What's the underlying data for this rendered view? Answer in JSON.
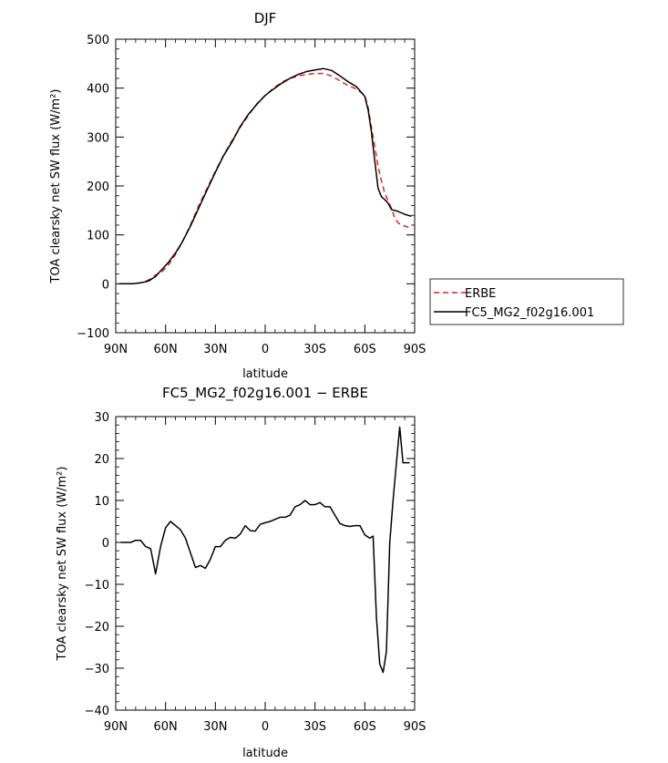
{
  "chart_data": [
    {
      "type": "line",
      "title": "DJF",
      "xlabel": "latitude",
      "ylabel": "TOA clearsky net SW flux (W/m²)",
      "xlim": [
        -90,
        90
      ],
      "ylim": [
        -100,
        500
      ],
      "x_ticks": [
        -90,
        -60,
        -30,
        0,
        30,
        60,
        90
      ],
      "x_tick_labels": [
        "90N",
        "60N",
        "30N",
        "0",
        "30S",
        "60S",
        "90S"
      ],
      "y_ticks": [
        -100,
        0,
        100,
        200,
        300,
        400,
        500
      ],
      "y_tick_labels": [
        "−100",
        "0",
        "100",
        "200",
        "300",
        "400",
        "500"
      ],
      "grid": false,
      "legend": "right",
      "series": [
        {
          "name": "ERBE",
          "color": "#e8211e",
          "dash": "dashed",
          "x": [
            -88,
            -85,
            -80,
            -75,
            -70,
            -66,
            -62,
            -58,
            -54,
            -50,
            -45,
            -40,
            -35,
            -30,
            -25,
            -20,
            -15,
            -10,
            -5,
            0,
            5,
            10,
            15,
            20,
            25,
            30,
            35,
            40,
            45,
            50,
            55,
            60,
            62,
            64,
            66,
            68,
            70,
            72,
            74,
            76,
            78,
            80,
            82,
            84,
            86,
            88
          ],
          "y": [
            0,
            0,
            0,
            2,
            8,
            18,
            25,
            40,
            60,
            85,
            120,
            160,
            195,
            230,
            263,
            293,
            320,
            345,
            368,
            385,
            400,
            412,
            420,
            425,
            428,
            430,
            430,
            425,
            415,
            405,
            398,
            385,
            360,
            320,
            280,
            240,
            210,
            185,
            170,
            155,
            135,
            125,
            120,
            118,
            116,
            115
          ]
        },
        {
          "name": "FC5_MG2_f02g16.001",
          "color": "#000000",
          "dash": "solid",
          "x": [
            -88,
            -85,
            -80,
            -75,
            -70,
            -66,
            -62,
            -58,
            -54,
            -50,
            -45,
            -40,
            -35,
            -30,
            -25,
            -20,
            -15,
            -10,
            -5,
            0,
            5,
            10,
            15,
            20,
            25,
            30,
            35,
            40,
            45,
            50,
            55,
            60,
            62,
            64,
            66,
            68,
            70,
            72,
            74,
            76,
            78,
            80,
            82,
            84,
            86,
            88
          ],
          "y": [
            0,
            0,
            0,
            2,
            6,
            15,
            30,
            45,
            63,
            85,
            118,
            155,
            192,
            228,
            262,
            290,
            322,
            347,
            367,
            385,
            398,
            410,
            420,
            428,
            434,
            437,
            440,
            436,
            425,
            413,
            403,
            383,
            355,
            310,
            250,
            195,
            178,
            172,
            165,
            152,
            150,
            148,
            145,
            142,
            140,
            138
          ]
        }
      ]
    },
    {
      "type": "line",
      "title": "FC5_MG2_f02g16.001 − ERBE",
      "xlabel": "latitude",
      "ylabel": "TOA clearsky net SW flux (W/m²)",
      "xlim": [
        -90,
        90
      ],
      "ylim": [
        -40,
        30
      ],
      "x_ticks": [
        -90,
        -60,
        -30,
        0,
        30,
        60,
        90
      ],
      "x_tick_labels": [
        "90N",
        "60N",
        "30N",
        "0",
        "30S",
        "60S",
        "90S"
      ],
      "y_ticks": [
        -40,
        -30,
        -20,
        -10,
        0,
        10,
        20,
        30
      ],
      "y_tick_labels": [
        "−40",
        "−30",
        "−20",
        "−10",
        "0",
        "10",
        "20",
        "30"
      ],
      "grid": false,
      "series": [
        {
          "name": "",
          "color": "#000000",
          "dash": "solid",
          "x": [
            -87,
            -84,
            -81,
            -78,
            -75,
            -72,
            -69,
            -66,
            -63,
            -60,
            -57,
            -54,
            -51,
            -48,
            -45,
            -42,
            -39,
            -36,
            -33,
            -30,
            -27,
            -24,
            -21,
            -18,
            -15,
            -12,
            -9,
            -6,
            -3,
            0,
            3,
            6,
            9,
            12,
            15,
            18,
            21,
            24,
            27,
            30,
            33,
            36,
            39,
            42,
            45,
            48,
            51,
            54,
            57,
            60,
            63,
            65,
            67,
            69,
            71,
            73,
            75,
            77,
            79,
            81,
            83,
            85,
            87
          ],
          "y": [
            0,
            0,
            0,
            0.5,
            0.5,
            -1,
            -1.5,
            -7.5,
            -1,
            3.5,
            5,
            4,
            3,
            1,
            -2.5,
            -6,
            -5.5,
            -6.2,
            -4,
            -1,
            -1,
            0.5,
            1.2,
            1,
            2,
            4,
            2.8,
            2.7,
            4.3,
            4.7,
            5,
            5.5,
            6,
            6,
            6.5,
            8.5,
            9,
            10,
            9,
            9,
            9.5,
            8.5,
            8.5,
            6.5,
            4.5,
            4,
            3.8,
            4,
            4,
            1.8,
            1,
            1.5,
            -18,
            -29,
            -31,
            -26,
            0,
            10,
            19,
            27.5,
            19,
            19,
            19
          ]
        }
      ]
    }
  ]
}
